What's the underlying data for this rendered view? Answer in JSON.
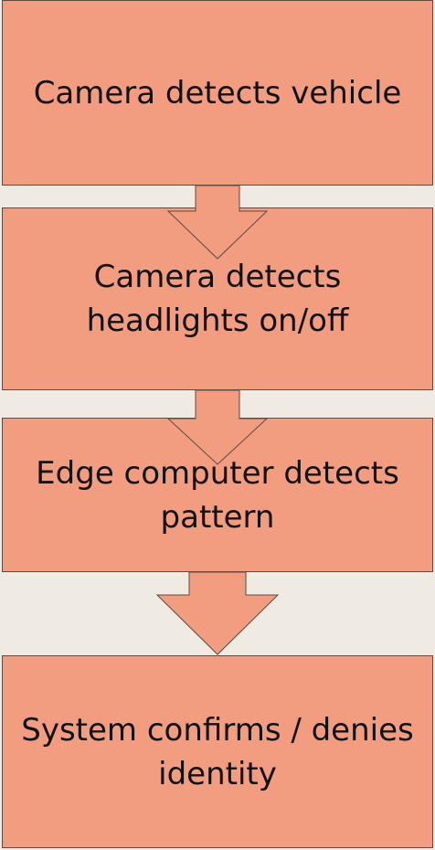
{
  "diagram": {
    "type": "vertical-flowchart",
    "steps": [
      {
        "label": "Camera detects vehicle"
      },
      {
        "label": "Camera detects headlights on/off"
      },
      {
        "label": "Edge computer detects pattern"
      },
      {
        "label": "System confirms / denies identity"
      }
    ],
    "connectors": [
      {
        "from": 0,
        "to": 1,
        "icon": "down-arrow-icon"
      },
      {
        "from": 1,
        "to": 2,
        "icon": "down-arrow-icon"
      },
      {
        "from": 2,
        "to": 3,
        "icon": "down-arrow-icon"
      }
    ],
    "colors": {
      "background": "#efebe3",
      "box_fill": "#f29d80",
      "box_border": "#5c4a43",
      "text": "#111111"
    }
  }
}
